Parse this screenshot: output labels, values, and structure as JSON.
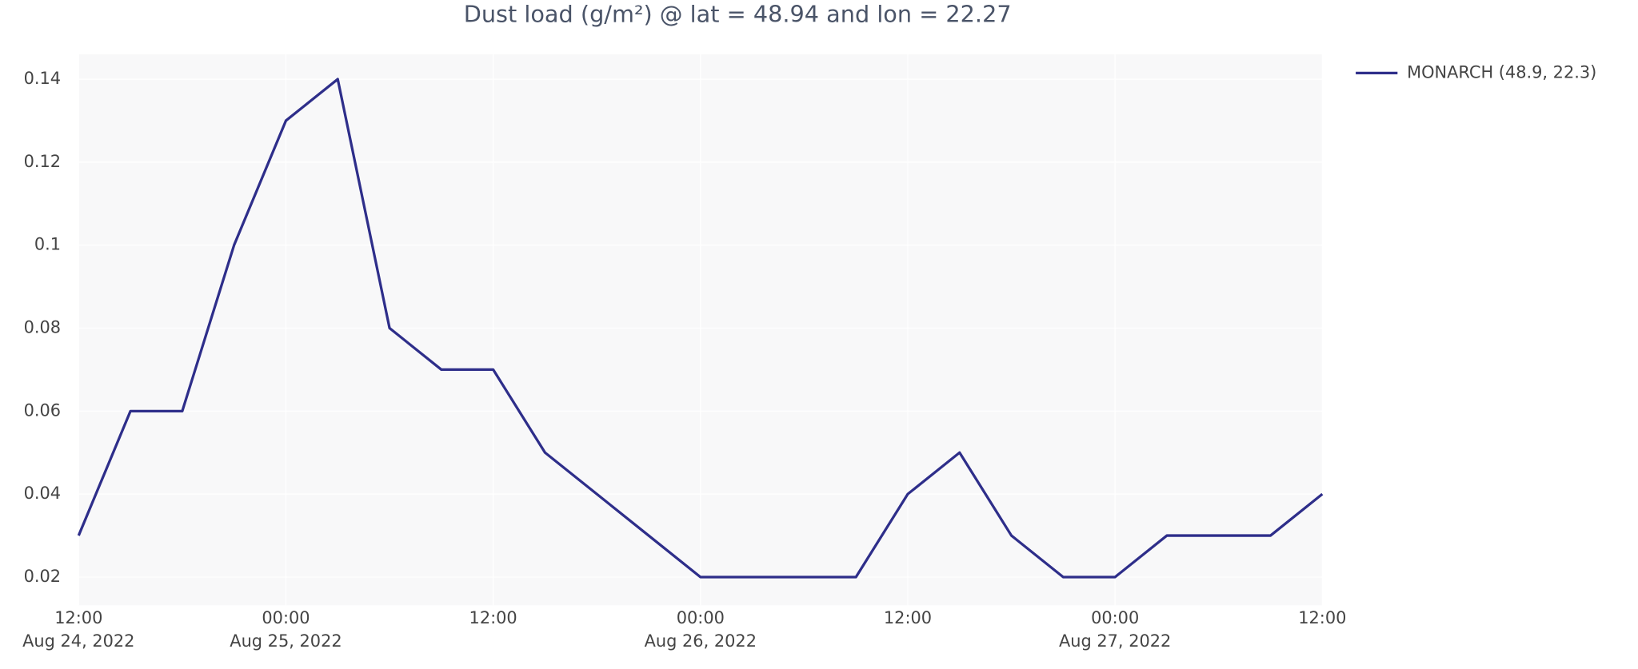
{
  "chart_data": {
    "type": "line",
    "title": "Dust load (g/m²) @ lat = 48.94 and lon = 22.27",
    "x": [
      "2022-08-24 12:00",
      "2022-08-24 15:00",
      "2022-08-24 18:00",
      "2022-08-24 21:00",
      "2022-08-25 00:00",
      "2022-08-25 03:00",
      "2022-08-25 06:00",
      "2022-08-25 09:00",
      "2022-08-25 12:00",
      "2022-08-25 15:00",
      "2022-08-25 18:00",
      "2022-08-25 21:00",
      "2022-08-26 00:00",
      "2022-08-26 03:00",
      "2022-08-26 06:00",
      "2022-08-26 09:00",
      "2022-08-26 12:00",
      "2022-08-26 15:00",
      "2022-08-26 18:00",
      "2022-08-26 21:00",
      "2022-08-27 00:00",
      "2022-08-27 03:00",
      "2022-08-27 06:00",
      "2022-08-27 09:00",
      "2022-08-27 12:00"
    ],
    "series": [
      {
        "name": "MONARCH (48.9, 22.3)",
        "color": "#2e2e8a",
        "values": [
          0.03,
          0.06,
          0.06,
          0.1,
          0.13,
          0.14,
          0.08,
          0.07,
          0.07,
          0.05,
          0.04,
          0.03,
          0.02,
          0.02,
          0.02,
          0.02,
          0.04,
          0.05,
          0.03,
          0.02,
          0.02,
          0.03,
          0.03,
          0.03,
          0.04
        ]
      }
    ],
    "xlim": [
      "2022-08-24 12:00",
      "2022-08-27 12:00"
    ],
    "xticks": [
      {
        "value": "2022-08-24 12:00",
        "label": [
          "12:00",
          "Aug 24, 2022"
        ]
      },
      {
        "value": "2022-08-25 00:00",
        "label": [
          "00:00",
          "Aug 25, 2022"
        ]
      },
      {
        "value": "2022-08-25 12:00",
        "label": [
          "12:00"
        ]
      },
      {
        "value": "2022-08-26 00:00",
        "label": [
          "00:00",
          "Aug 26, 2022"
        ]
      },
      {
        "value": "2022-08-26 12:00",
        "label": [
          "12:00"
        ]
      },
      {
        "value": "2022-08-27 00:00",
        "label": [
          "00:00",
          "Aug 27, 2022"
        ]
      },
      {
        "value": "2022-08-27 12:00",
        "label": [
          "12:00"
        ]
      }
    ],
    "ylim": [
      0.0132,
      0.146
    ],
    "yticks": [
      0.02,
      0.04,
      0.06,
      0.08,
      0.1,
      0.12,
      0.14
    ],
    "grid": true,
    "legend": "right"
  }
}
